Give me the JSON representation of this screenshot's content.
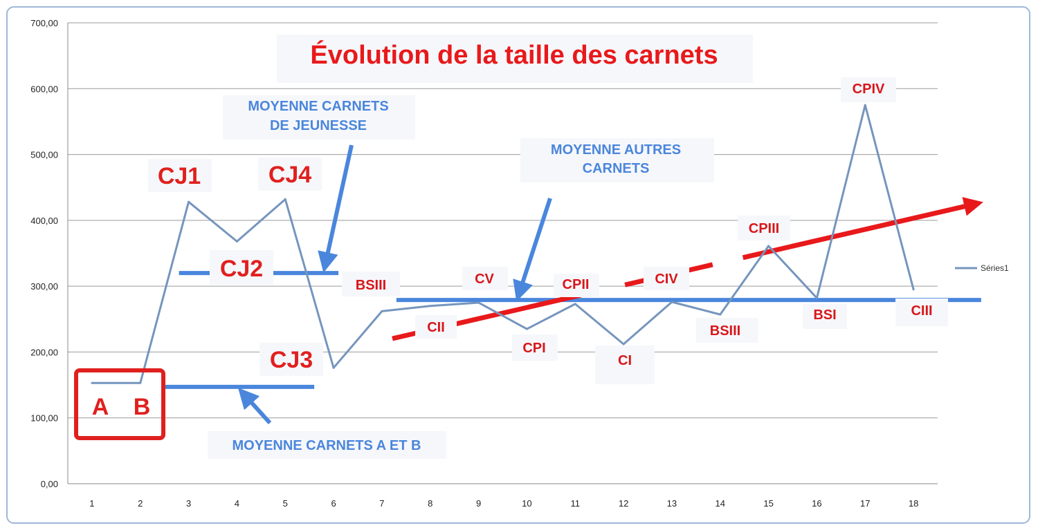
{
  "chart_data": {
    "type": "line",
    "title": "Évolution de la taille des carnets",
    "xlabel": "",
    "ylabel": "",
    "categories": [
      "1",
      "2",
      "3",
      "4",
      "5",
      "6",
      "7",
      "8",
      "9",
      "10",
      "11",
      "12",
      "13",
      "14",
      "15",
      "16",
      "17",
      "18"
    ],
    "yticks": [
      "0,00",
      "100,00",
      "200,00",
      "300,00",
      "400,00",
      "500,00",
      "600,00",
      "700,00"
    ],
    "ylim": [
      0,
      700
    ],
    "grid": true,
    "legend": "right",
    "series": [
      {
        "name": "Séries1",
        "color": "#7595bd",
        "values": [
          153,
          153,
          428,
          368,
          432,
          176,
          262,
          270,
          275,
          235,
          273,
          212,
          276,
          257,
          361,
          282,
          575,
          295
        ]
      }
    ],
    "average_lines": [
      {
        "label": "MOYENNE CARNETS A ET B",
        "value": 147,
        "x_from": 2.5,
        "x_to": 5.6
      },
      {
        "label": "MOYENNE CARNETS DE JEUNESSE",
        "value": 320,
        "x_from": 2.8,
        "x_to": 6.1
      },
      {
        "label": "MOYENNE AUTRES CARNETS",
        "value": 279,
        "x_from": 7.3,
        "x_to": 19.4
      }
    ],
    "annotations": {
      "blue": [
        {
          "id": "avg_ab",
          "text": "MOYENNE CARNETS A ET B"
        },
        {
          "id": "avg_jeunesse_1",
          "text": "MOYENNE CARNETS"
        },
        {
          "id": "avg_jeunesse_2",
          "text": "DE JEUNESSE"
        },
        {
          "id": "avg_autres_1",
          "text": "MOYENNE AUTRES"
        },
        {
          "id": "avg_autres_2",
          "text": "CARNETS"
        }
      ],
      "red_big": [
        "A",
        "B",
        "CJ1",
        "CJ2",
        "CJ3",
        "CJ4"
      ],
      "red_small": [
        "BSIII",
        "CV",
        "CII",
        "CPI",
        "CPII",
        "CI",
        "CIV",
        "BSIII",
        "CPIII",
        "BSI",
        "CPIV",
        "CIII"
      ]
    },
    "colors": {
      "title": "#e8191b",
      "annotation_red": "#d8171a",
      "annotation_blue": "#4a86dc",
      "average_line": "#4a86dc",
      "trend_arrow": "#e8191b"
    }
  }
}
